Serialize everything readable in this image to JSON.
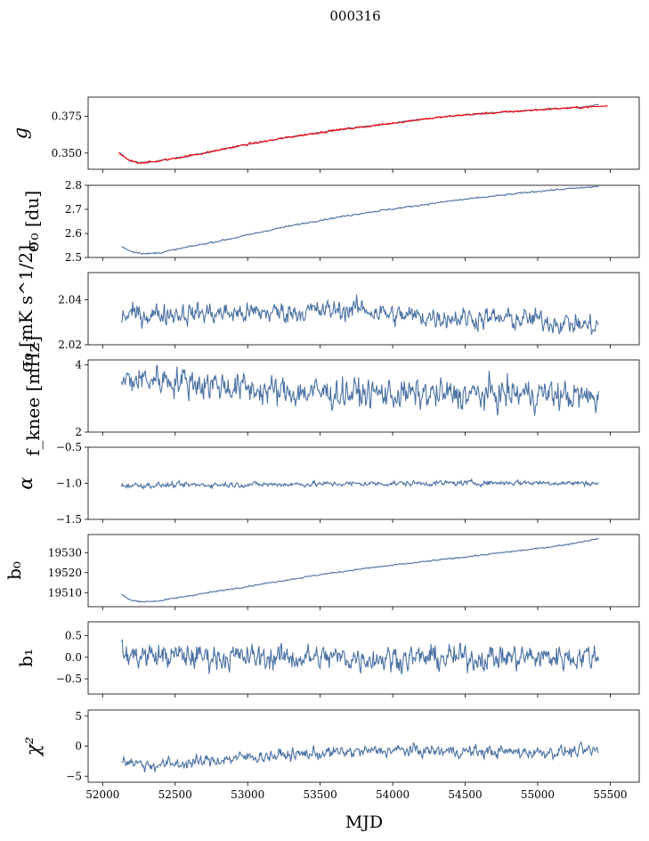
{
  "figure": {
    "title": "000316",
    "xlabel": "MJD"
  },
  "chart_data": [
    {
      "type": "line",
      "ylabel": "g",
      "ylabel_style": "italic",
      "xlim": [
        51900,
        55700
      ],
      "ylim": [
        0.339,
        0.388
      ],
      "yticks": [
        0.35,
        0.375
      ],
      "ytick_labels": [
        "0.350",
        "0.375"
      ],
      "series": [
        {
          "color": "#4c72a4",
          "noise": 0.0004,
          "x": [
            52120,
            52180,
            52250,
            52350,
            52500,
            52700,
            53000,
            53300,
            53600,
            53900,
            54200,
            54500,
            54800,
            55100,
            55300,
            55420
          ],
          "y": [
            0.35,
            0.345,
            0.3435,
            0.344,
            0.3465,
            0.35,
            0.356,
            0.361,
            0.3655,
            0.369,
            0.373,
            0.376,
            0.378,
            0.38,
            0.381,
            0.383
          ]
        },
        {
          "color": "#ff0000",
          "noise": 0.0006,
          "x": [
            52110,
            52180,
            52250,
            52350,
            52500,
            52700,
            53000,
            53300,
            53600,
            53900,
            54200,
            54500,
            54800,
            55100,
            55300,
            55480
          ],
          "y": [
            0.35,
            0.345,
            0.3435,
            0.344,
            0.3465,
            0.35,
            0.356,
            0.361,
            0.3655,
            0.369,
            0.373,
            0.376,
            0.378,
            0.38,
            0.381,
            0.382
          ]
        }
      ]
    },
    {
      "type": "line",
      "ylabel": "σ₀ [du]",
      "xlim": [
        51900,
        55700
      ],
      "ylim": [
        2.5,
        2.8
      ],
      "yticks": [
        2.5,
        2.6,
        2.7,
        2.8
      ],
      "ytick_labels": [
        "2.5",
        "2.6",
        "2.7",
        "2.8"
      ],
      "series": [
        {
          "color": "#4c72a4",
          "noise": 0.003,
          "x": [
            52130,
            52200,
            52300,
            52400,
            52600,
            52900,
            53200,
            53500,
            53800,
            54100,
            54400,
            54700,
            55000,
            55200,
            55420
          ],
          "y": [
            2.545,
            2.525,
            2.515,
            2.52,
            2.545,
            2.58,
            2.62,
            2.655,
            2.685,
            2.71,
            2.735,
            2.755,
            2.775,
            2.785,
            2.795
          ]
        }
      ]
    },
    {
      "type": "line",
      "ylabel": "σ₀ [mK s^1/2]",
      "xlim": [
        51900,
        55700
      ],
      "ylim": [
        2.02,
        2.052
      ],
      "yticks": [
        2.02,
        2.04
      ],
      "ytick_labels": [
        "2.02",
        "2.04"
      ],
      "series": [
        {
          "color": "#4c72a4",
          "noise": 0.0042,
          "x": [
            52130,
            52500,
            53000,
            53500,
            53800,
            54000,
            54500,
            55000,
            55420
          ],
          "y": [
            2.033,
            2.034,
            2.034,
            2.035,
            2.036,
            2.033,
            2.032,
            2.031,
            2.028
          ]
        }
      ]
    },
    {
      "type": "line",
      "ylabel": "f_knee [mHz]",
      "xlim": [
        51900,
        55700
      ],
      "ylim": [
        2.0,
        4.15
      ],
      "yticks": [
        2,
        4
      ],
      "ytick_labels": [
        "2",
        "4"
      ],
      "series": [
        {
          "color": "#4c72a4",
          "noise": 0.4,
          "x": [
            52130,
            52400,
            52800,
            53200,
            53800,
            54400,
            55000,
            55420
          ],
          "y": [
            3.5,
            3.6,
            3.4,
            3.2,
            3.15,
            3.1,
            3.15,
            3.0
          ]
        }
      ]
    },
    {
      "type": "line",
      "ylabel": "α",
      "ylabel_style": "italic",
      "xlim": [
        51900,
        55700
      ],
      "ylim": [
        -1.5,
        -0.5
      ],
      "yticks": [
        -1.5,
        -1.0,
        -0.5
      ],
      "ytick_labels": [
        "−1.5",
        "−1.0",
        "−0.5"
      ],
      "series": [
        {
          "color": "#4c72a4",
          "noise": 0.032,
          "x": [
            52130,
            52800,
            53500,
            54200,
            54900,
            55420
          ],
          "y": [
            -1.03,
            -1.02,
            -1.01,
            -1.0,
            -0.99,
            -1.0
          ]
        }
      ]
    },
    {
      "type": "line",
      "ylabel": "b₀",
      "xlim": [
        51900,
        55700
      ],
      "ylim": [
        19503,
        19539
      ],
      "yticks": [
        19510,
        19520,
        19530
      ],
      "ytick_labels": [
        "19510",
        "19520",
        "19530"
      ],
      "series": [
        {
          "color": "#4c72a4",
          "noise": 0.3,
          "x": [
            52130,
            52200,
            52300,
            52400,
            52600,
            52900,
            53200,
            53500,
            53800,
            54100,
            54400,
            54700,
            55000,
            55200,
            55420
          ],
          "y": [
            19509,
            19506,
            19505.5,
            19506,
            19508.5,
            19512,
            19515.5,
            19519,
            19522,
            19524.5,
            19527,
            19529.5,
            19532,
            19534,
            19537
          ]
        }
      ]
    },
    {
      "type": "line",
      "ylabel": "b₁",
      "xlim": [
        51900,
        55700
      ],
      "ylim": [
        -0.85,
        0.82
      ],
      "yticks": [
        -0.5,
        0.0,
        0.5
      ],
      "ytick_labels": [
        "−0.5",
        "0.0",
        "0.5"
      ],
      "series": [
        {
          "color": "#4c72a4",
          "noise": 0.26,
          "x": [
            52130,
            53000,
            54000,
            55000,
            55420
          ],
          "y": [
            0.05,
            0.0,
            -0.02,
            0.0,
            0.02
          ]
        }
      ]
    },
    {
      "type": "line",
      "ylabel": "χ²",
      "ylabel_style": "italic",
      "xlim": [
        51900,
        55700
      ],
      "ylim": [
        -6,
        6
      ],
      "yticks": [
        -5,
        0,
        5
      ],
      "ytick_labels": [
        "−5",
        "0",
        "5"
      ],
      "series": [
        {
          "color": "#4c72a4",
          "noise": 0.9,
          "x": [
            52130,
            52300,
            52600,
            53000,
            53500,
            54000,
            54500,
            55000,
            55420
          ],
          "y": [
            -2.2,
            -3.2,
            -2.8,
            -1.8,
            -1.2,
            -0.7,
            -0.9,
            -1.0,
            -0.8
          ]
        }
      ]
    }
  ],
  "xaxis": {
    "ticks": [
      52000,
      52500,
      53000,
      53500,
      54000,
      54500,
      55000,
      55500
    ],
    "tick_labels": [
      "52000",
      "52500",
      "53000",
      "53500",
      "54000",
      "54500",
      "55000",
      "55500"
    ]
  }
}
